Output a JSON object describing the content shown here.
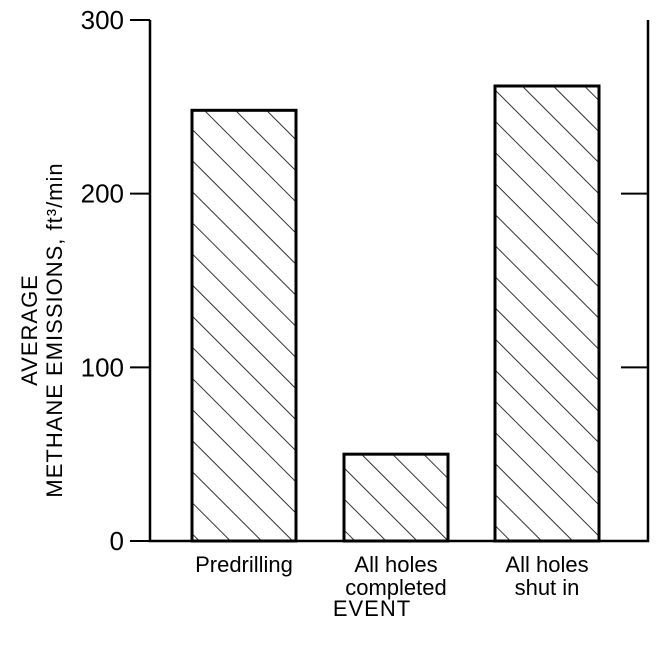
{
  "chart_data": {
    "type": "bar",
    "categories": [
      [
        "Predrilling"
      ],
      [
        "All holes",
        "completed"
      ],
      [
        "All holes",
        "shut in"
      ]
    ],
    "values": [
      248,
      50,
      262
    ],
    "xlabel": "EVENT",
    "ylabel_lines": [
      "AVERAGE",
      "METHANE EMISSIONS,  ft³/min"
    ],
    "ylim": [
      0,
      300
    ],
    "yticks": [
      0,
      100,
      200,
      300
    ],
    "right_ticks": [
      100,
      200
    ],
    "bar_fill": "diagonal-hatch",
    "grid": false
  }
}
